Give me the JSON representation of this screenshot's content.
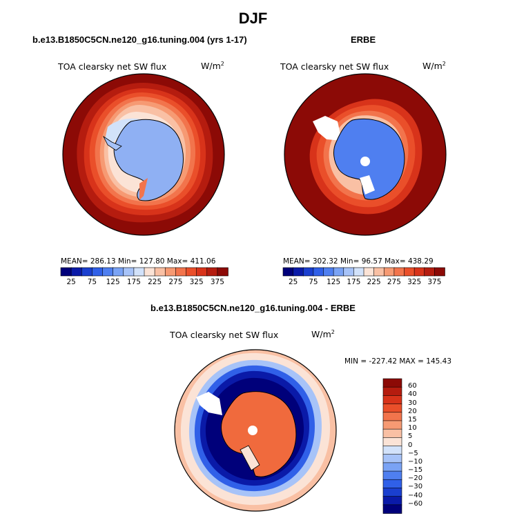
{
  "title": "DJF",
  "panels": [
    {
      "title": "b.e13.B1850C5CN.ne120_g16.tuning.004 (yrs 1-17)",
      "variable": "TOA clearsky net SW flux",
      "units_base": "W/m",
      "units_exp": "2",
      "stats": "MEAN= 286.13    Min= 127.80    Max= 411.06"
    },
    {
      "title": "ERBE",
      "variable": "TOA clearsky net SW flux",
      "units_base": "W/m",
      "units_exp": "2",
      "stats": "MEAN= 302.32    Min=   96.57    Max= 438.29"
    },
    {
      "title": "b.e13.B1850C5CN.ne120_g16.tuning.004 - ERBE",
      "variable": "TOA clearsky net SW flux",
      "units_base": "W/m",
      "units_exp": "2",
      "stats": "MIN = -227.42  MAX = 145.43"
    }
  ],
  "colorbar_abs": {
    "tick_labels": [
      "25",
      "75",
      "125",
      "175",
      "225",
      "275",
      "325",
      "375"
    ],
    "colors": [
      "#00007a",
      "#0a1aa8",
      "#1a3fcf",
      "#3060e8",
      "#4f7ff0",
      "#7aa3f5",
      "#a7c3f8",
      "#d2e2fa",
      "#fbe3d6",
      "#f9c0a4",
      "#f69a73",
      "#f2744c",
      "#ea4f2a",
      "#d8331a",
      "#b51c0f",
      "#8c0a06"
    ]
  },
  "colorbar_diff": {
    "tick_labels": [
      "60",
      "40",
      "30",
      "20",
      "15",
      "10",
      "5",
      "0",
      "−5",
      "−10",
      "−15",
      "−20",
      "−30",
      "−40",
      "−60"
    ],
    "colors": [
      "#8c0a06",
      "#b51c0f",
      "#d8331a",
      "#ea4f2a",
      "#f2744c",
      "#f69a73",
      "#f9c0a4",
      "#fbe3d6",
      "#d2e2fa",
      "#a7c3f8",
      "#7aa3f5",
      "#4f7ff0",
      "#3060e8",
      "#1a3fcf",
      "#0a1aa8",
      "#00007a"
    ]
  },
  "colors": {
    "ocean_warm": "#8c0a06",
    "antarctic": "#8fb0f3",
    "diff_positive": "#f06a3d",
    "diff_negative": "#0a1aa8"
  }
}
